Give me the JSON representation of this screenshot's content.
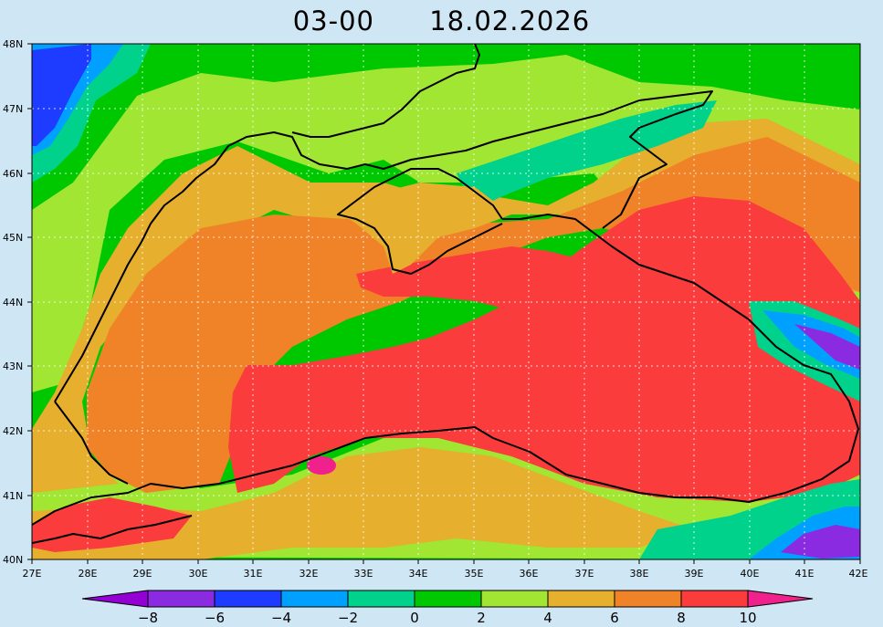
{
  "title": {
    "time": "03-00",
    "date": "18.02.2026"
  },
  "lat_labels": [
    "48N",
    "47N",
    "46N",
    "45N",
    "44N",
    "43N",
    "42N",
    "41N",
    "40N"
  ],
  "lon_labels": [
    "27E",
    "28E",
    "29E",
    "30E",
    "31E",
    "32E",
    "33E",
    "34E",
    "35E",
    "36E",
    "37E",
    "38E",
    "39E",
    "40E",
    "41E",
    "42E"
  ],
  "colorbar": {
    "labels": [
      "−8",
      "−6",
      "−4",
      "−2",
      "0",
      "2",
      "4",
      "6",
      "8",
      "10"
    ],
    "colors": [
      "#9400d3",
      "#8a2be2",
      "#1e3cff",
      "#00a0ff",
      "#00d28c",
      "#00c800",
      "#a0e632",
      "#e6af2d",
      "#f08228",
      "#fa3c3c",
      "#f0208c"
    ]
  }
}
